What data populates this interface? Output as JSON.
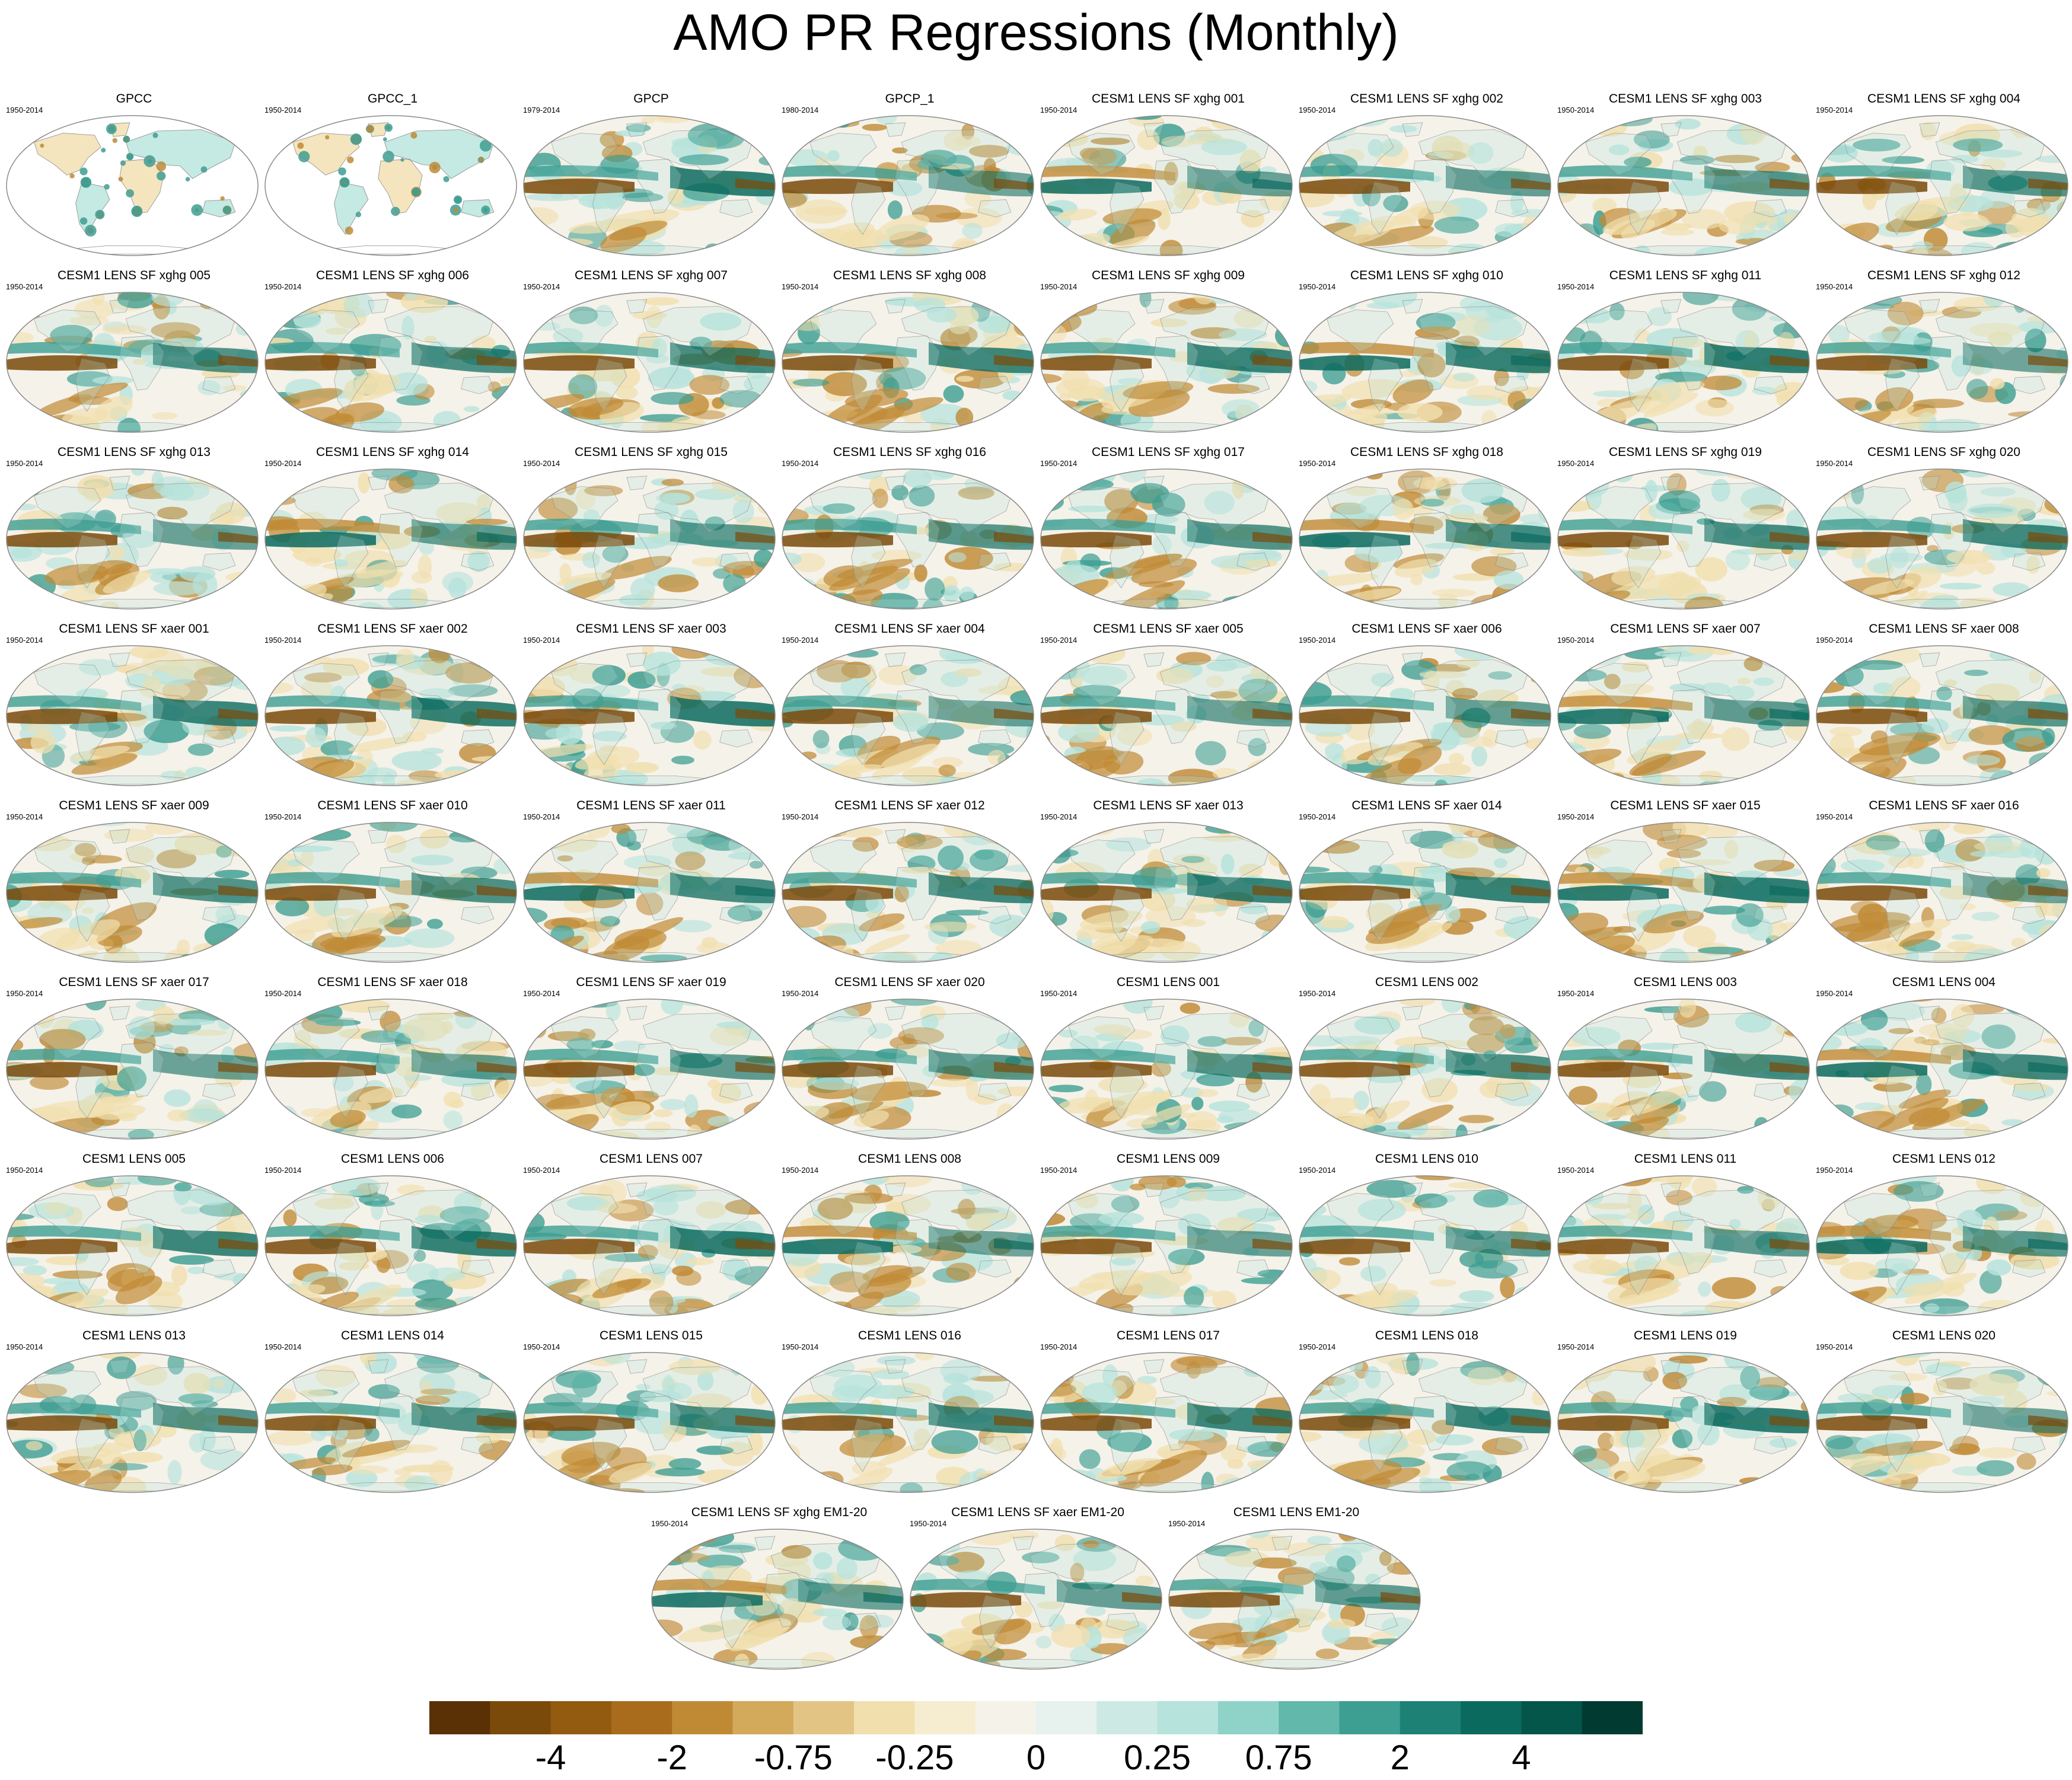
{
  "title": "AMO PR Regressions (Monthly)",
  "colors": {
    "brown_strong": "#7a4a0a",
    "brown_mid": "#c08a35",
    "tan_light": "#f1dfae",
    "neutral": "#f5f2ea",
    "teal_light": "#b6e3dc",
    "teal_mid": "#3d9e92",
    "teal_strong": "#0b6a5e",
    "land_white": "#ffffff",
    "outline": "#8a8a8a"
  },
  "panels": [
    {
      "title": "GPCC",
      "years": "1950-2014",
      "type": "land"
    },
    {
      "title": "GPCC_1",
      "years": "1950-2014",
      "type": "land"
    },
    {
      "title": "GPCP",
      "years": "1979-2014",
      "type": "full"
    },
    {
      "title": "GPCP_1",
      "years": "1980-2014",
      "type": "full"
    },
    {
      "title": "CESM1 LENS SF xghg 001",
      "years": "1950-2014",
      "type": "full"
    },
    {
      "title": "CESM1 LENS SF xghg 002",
      "years": "1950-2014",
      "type": "full"
    },
    {
      "title": "CESM1 LENS SF xghg 003",
      "years": "1950-2014",
      "type": "full"
    },
    {
      "title": "CESM1 LENS SF xghg 004",
      "years": "1950-2014",
      "type": "full"
    },
    {
      "title": "CESM1 LENS SF xghg 005",
      "years": "1950-2014",
      "type": "full"
    },
    {
      "title": "CESM1 LENS SF xghg 006",
      "years": "1950-2014",
      "type": "full"
    },
    {
      "title": "CESM1 LENS SF xghg 007",
      "years": "1950-2014",
      "type": "full"
    },
    {
      "title": "CESM1 LENS SF xghg 008",
      "years": "1950-2014",
      "type": "full"
    },
    {
      "title": "CESM1 LENS SF xghg 009",
      "years": "1950-2014",
      "type": "full"
    },
    {
      "title": "CESM1 LENS SF xghg 010",
      "years": "1950-2014",
      "type": "full"
    },
    {
      "title": "CESM1 LENS SF xghg 011",
      "years": "1950-2014",
      "type": "full"
    },
    {
      "title": "CESM1 LENS SF xghg 012",
      "years": "1950-2014",
      "type": "full"
    },
    {
      "title": "CESM1 LENS SF xghg 013",
      "years": "1950-2014",
      "type": "full"
    },
    {
      "title": "CESM1 LENS SF xghg 014",
      "years": "1950-2014",
      "type": "full"
    },
    {
      "title": "CESM1 LENS SF xghg 015",
      "years": "1950-2014",
      "type": "full"
    },
    {
      "title": "CESM1 LENS SF xghg 016",
      "years": "1950-2014",
      "type": "full"
    },
    {
      "title": "CESM1 LENS SF xghg 017",
      "years": "1950-2014",
      "type": "full"
    },
    {
      "title": "CESM1 LENS SF xghg 018",
      "years": "1950-2014",
      "type": "full"
    },
    {
      "title": "CESM1 LENS SF xghg 019",
      "years": "1950-2014",
      "type": "full"
    },
    {
      "title": "CESM1 LENS SF xghg 020",
      "years": "1950-2014",
      "type": "full"
    },
    {
      "title": "CESM1 LENS SF xaer 001",
      "years": "1950-2014",
      "type": "full"
    },
    {
      "title": "CESM1 LENS SF xaer 002",
      "years": "1950-2014",
      "type": "full"
    },
    {
      "title": "CESM1 LENS SF xaer 003",
      "years": "1950-2014",
      "type": "full"
    },
    {
      "title": "CESM1 LENS SF xaer 004",
      "years": "1950-2014",
      "type": "full"
    },
    {
      "title": "CESM1 LENS SF xaer 005",
      "years": "1950-2014",
      "type": "full"
    },
    {
      "title": "CESM1 LENS SF xaer 006",
      "years": "1950-2014",
      "type": "full"
    },
    {
      "title": "CESM1 LENS SF xaer 007",
      "years": "1950-2014",
      "type": "full"
    },
    {
      "title": "CESM1 LENS SF xaer 008",
      "years": "1950-2014",
      "type": "full"
    },
    {
      "title": "CESM1 LENS SF xaer 009",
      "years": "1950-2014",
      "type": "full"
    },
    {
      "title": "CESM1 LENS SF xaer 010",
      "years": "1950-2014",
      "type": "full"
    },
    {
      "title": "CESM1 LENS SF xaer 011",
      "years": "1950-2014",
      "type": "full"
    },
    {
      "title": "CESM1 LENS SF xaer 012",
      "years": "1950-2014",
      "type": "full"
    },
    {
      "title": "CESM1 LENS SF xaer 013",
      "years": "1950-2014",
      "type": "full"
    },
    {
      "title": "CESM1 LENS SF xaer 014",
      "years": "1950-2014",
      "type": "full"
    },
    {
      "title": "CESM1 LENS SF xaer 015",
      "years": "1950-2014",
      "type": "full"
    },
    {
      "title": "CESM1 LENS SF xaer 016",
      "years": "1950-2014",
      "type": "full"
    },
    {
      "title": "CESM1 LENS SF xaer 017",
      "years": "1950-2014",
      "type": "full"
    },
    {
      "title": "CESM1 LENS SF xaer 018",
      "years": "1950-2014",
      "type": "full"
    },
    {
      "title": "CESM1 LENS SF xaer 019",
      "years": "1950-2014",
      "type": "full"
    },
    {
      "title": "CESM1 LENS SF xaer 020",
      "years": "1950-2014",
      "type": "full"
    },
    {
      "title": "CESM1 LENS 001",
      "years": "1950-2014",
      "type": "full"
    },
    {
      "title": "CESM1 LENS 002",
      "years": "1950-2014",
      "type": "full"
    },
    {
      "title": "CESM1 LENS 003",
      "years": "1950-2014",
      "type": "full"
    },
    {
      "title": "CESM1 LENS 004",
      "years": "1950-2014",
      "type": "full"
    },
    {
      "title": "CESM1 LENS 005",
      "years": "1950-2014",
      "type": "full"
    },
    {
      "title": "CESM1 LENS 006",
      "years": "1950-2014",
      "type": "full"
    },
    {
      "title": "CESM1 LENS 007",
      "years": "1950-2014",
      "type": "full"
    },
    {
      "title": "CESM1 LENS 008",
      "years": "1950-2014",
      "type": "full"
    },
    {
      "title": "CESM1 LENS 009",
      "years": "1950-2014",
      "type": "full"
    },
    {
      "title": "CESM1 LENS 010",
      "years": "1950-2014",
      "type": "full"
    },
    {
      "title": "CESM1 LENS 011",
      "years": "1950-2014",
      "type": "full"
    },
    {
      "title": "CESM1 LENS 012",
      "years": "1950-2014",
      "type": "full"
    },
    {
      "title": "CESM1 LENS 013",
      "years": "1950-2014",
      "type": "full"
    },
    {
      "title": "CESM1 LENS 014",
      "years": "1950-2014",
      "type": "full"
    },
    {
      "title": "CESM1 LENS 015",
      "years": "1950-2014",
      "type": "full"
    },
    {
      "title": "CESM1 LENS 016",
      "years": "1950-2014",
      "type": "full"
    },
    {
      "title": "CESM1 LENS 017",
      "years": "1950-2014",
      "type": "full"
    },
    {
      "title": "CESM1 LENS 018",
      "years": "1950-2014",
      "type": "full"
    },
    {
      "title": "CESM1 LENS 019",
      "years": "1950-2014",
      "type": "full"
    },
    {
      "title": "CESM1 LENS 020",
      "years": "1950-2014",
      "type": "full"
    },
    {
      "title": "CESM1 LENS SF xghg EM1-20",
      "years": "1950-2014",
      "type": "full"
    },
    {
      "title": "CESM1 LENS SF xaer EM1-20",
      "years": "1950-2014",
      "type": "full"
    },
    {
      "title": "CESM1 LENS EM1-20",
      "years": "1950-2014",
      "type": "full"
    }
  ],
  "colorbar": {
    "colors": [
      "#5a3105",
      "#7a4a0a",
      "#925b10",
      "#a86c1c",
      "#c08a35",
      "#d3a95c",
      "#e2c584",
      "#f1dfae",
      "#f6ecd0",
      "#f5f2ea",
      "#e7f1ee",
      "#cde9e3",
      "#b6e3dc",
      "#8fd3c8",
      "#62b8aa",
      "#3d9e92",
      "#1d8175",
      "#0b6a5e",
      "#05564a",
      "#003a30"
    ],
    "labels": [
      "-4",
      "-2",
      "-0.75",
      "-0.25",
      "0",
      "0.25",
      "0.75",
      "2",
      "4"
    ]
  }
}
